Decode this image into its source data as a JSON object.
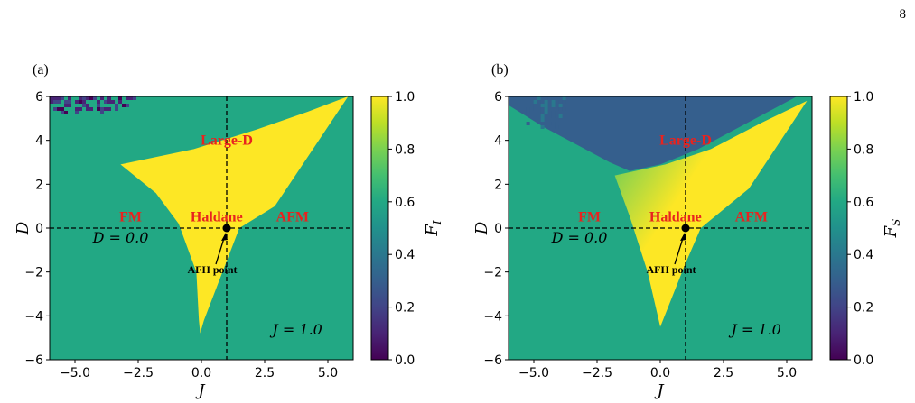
{
  "page_number": "8",
  "colors": {
    "teal": "#21918c",
    "yellow": "#fde725",
    "blue": "#355f8d",
    "purple": "#440154",
    "region_label": "#e8231f"
  },
  "colormap": "viridis",
  "chart_data": [
    {
      "type": "heatmap",
      "panel_label": "(a)",
      "xlabel": "J",
      "ylabel": "D",
      "xlim": [
        -6,
        6
      ],
      "ylim": [
        -6,
        6
      ],
      "xticks": [
        "−5.0",
        "−2.5",
        "0.0",
        "2.5",
        "5.0"
      ],
      "xtick_values": [
        -5,
        -2.5,
        0,
        2.5,
        5
      ],
      "yticks": [
        "−6",
        "−4",
        "−2",
        "0",
        "2",
        "4",
        "6"
      ],
      "ytick_values": [
        -6,
        -4,
        -2,
        0,
        2,
        4,
        6
      ],
      "colorbar": {
        "label": "F",
        "label_sub": "I",
        "min": 0,
        "max": 1,
        "ticks": [
          "0.0",
          "0.2",
          "0.4",
          "0.6",
          "0.8",
          "1.0"
        ],
        "tick_values": [
          0,
          0.2,
          0.4,
          0.6,
          0.8,
          1.0
        ]
      },
      "background_value": 0.55,
      "haldane_value": 1.0,
      "haldane_region_boundary": [
        [
          -3.2,
          2.9
        ],
        [
          -0.3,
          3.6
        ],
        [
          2.2,
          4.5
        ],
        [
          4.2,
          5.3
        ],
        [
          5.8,
          6.0
        ],
        [
          2.9,
          1.0
        ],
        [
          1.5,
          0.0
        ],
        [
          1.0,
          -1.5
        ],
        [
          0.1,
          -4.2
        ],
        [
          -0.05,
          -4.8
        ],
        [
          -0.1,
          -4.2
        ],
        [
          -0.2,
          -2.0
        ],
        [
          -0.9,
          0.2
        ],
        [
          -1.8,
          1.6
        ]
      ],
      "noise_region": {
        "x": [
          -6,
          -2.6
        ],
        "y": [
          5.2,
          6.0
        ],
        "value_range": [
          0.0,
          0.25
        ]
      },
      "dashed_lines": {
        "vertical_J": 1.0,
        "horizontal_D": 0.0
      },
      "point": {
        "J": 1.0,
        "D": 0.0,
        "label": "AFH point"
      },
      "region_labels": [
        {
          "text": "Large-D",
          "J": 1.0,
          "D": 3.8
        },
        {
          "text": "FM",
          "J": -2.8,
          "D": 0.3
        },
        {
          "text": "Haldane",
          "J": 0.6,
          "D": 0.3
        },
        {
          "text": "AFM",
          "J": 3.6,
          "D": 0.3
        }
      ],
      "annotations": [
        {
          "text": "D = 0.0",
          "J": -4.3,
          "D": -0.65
        },
        {
          "text": "J = 1.0",
          "J": 2.8,
          "D": -4.85
        }
      ]
    },
    {
      "type": "heatmap",
      "panel_label": "(b)",
      "xlabel": "J",
      "ylabel": "D",
      "xlim": [
        -6,
        6
      ],
      "ylim": [
        -6,
        6
      ],
      "xticks": [
        "−5.0",
        "−2.5",
        "0.0",
        "2.5",
        "5.0"
      ],
      "xtick_values": [
        -5,
        -2.5,
        0,
        2.5,
        5
      ],
      "yticks": [
        "−6",
        "−4",
        "−2",
        "0",
        "2",
        "4",
        "6"
      ],
      "ytick_values": [
        -6,
        -4,
        -2,
        0,
        2,
        4,
        6
      ],
      "colorbar": {
        "label": "F",
        "label_sub": "S",
        "min": 0,
        "max": 1,
        "ticks": [
          "0.0",
          "0.2",
          "0.4",
          "0.6",
          "0.8",
          "1.0"
        ],
        "tick_values": [
          0,
          0.2,
          0.4,
          0.6,
          0.8,
          1.0
        ]
      },
      "background_value": 0.55,
      "large_d_value": 0.3,
      "large_d_region_boundary": [
        [
          -6,
          6
        ],
        [
          5.4,
          6.0
        ],
        [
          2.8,
          4.4
        ],
        [
          1.5,
          3.6
        ],
        [
          0.0,
          2.9
        ],
        [
          -1.2,
          2.6
        ],
        [
          -2.0,
          3.0
        ],
        [
          -3.3,
          3.8
        ],
        [
          -4.6,
          4.6
        ],
        [
          -6,
          5.6
        ]
      ],
      "haldane_gradient_region_boundary": [
        [
          -1.8,
          2.4
        ],
        [
          0.2,
          2.9
        ],
        [
          2.0,
          3.6
        ],
        [
          4.0,
          4.8
        ],
        [
          5.8,
          5.8
        ],
        [
          3.5,
          1.8
        ],
        [
          1.6,
          0.0
        ],
        [
          1.0,
          -1.6
        ],
        [
          0.0,
          -4.5
        ],
        [
          -0.5,
          -2.0
        ],
        [
          -1.2,
          0.5
        ]
      ],
      "noise_region": {
        "x": [
          -5.3,
          -3.8
        ],
        "y": [
          4.6,
          6.0
        ],
        "value_range": [
          0.25,
          0.4
        ]
      },
      "dashed_lines": {
        "vertical_J": 1.0,
        "horizontal_D": 0.0
      },
      "point": {
        "J": 1.0,
        "D": 0.0,
        "label": "AFH point"
      },
      "region_labels": [
        {
          "text": "Large-D",
          "J": 1.0,
          "D": 3.8
        },
        {
          "text": "FM",
          "J": -2.8,
          "D": 0.3
        },
        {
          "text": "Haldane",
          "J": 0.6,
          "D": 0.3
        },
        {
          "text": "AFM",
          "J": 3.6,
          "D": 0.3
        }
      ],
      "annotations": [
        {
          "text": "D = 0.0",
          "J": -4.3,
          "D": -0.65
        },
        {
          "text": "J = 1.0",
          "J": 2.8,
          "D": -4.85
        }
      ]
    }
  ]
}
